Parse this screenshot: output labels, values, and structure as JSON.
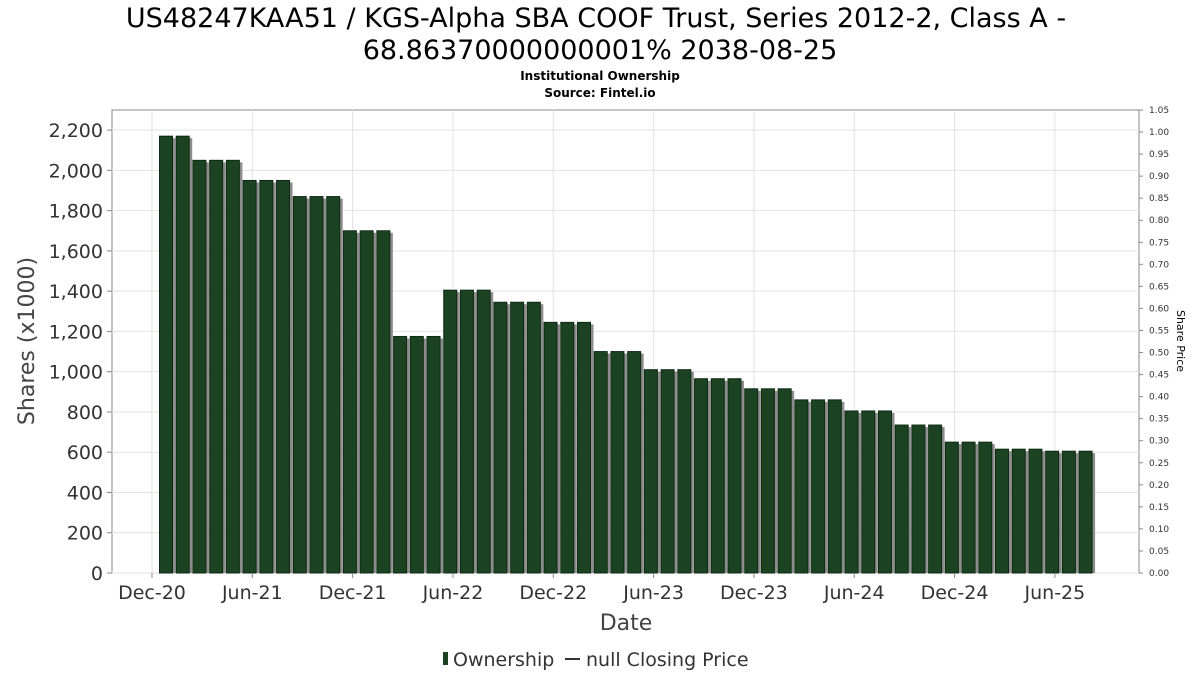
{
  "chart_data": {
    "type": "bar",
    "title_line1": "US48247KAA51 / KGS-Alpha SBA COOF Trust, Series 2012-2, Class A -",
    "title_line2": "68.86370000000001% 2038-08-25",
    "subtitle": "Institutional Ownership",
    "source": "Source: Fintel.io",
    "xlabel": "Date",
    "ylabel": "Shares (x1000)",
    "y2label": "Share Price",
    "ylim": [
      0,
      2300
    ],
    "y2lim": [
      0,
      1.05
    ],
    "yticks": [
      "0",
      "200",
      "400",
      "600",
      "800",
      "1,000",
      "1,200",
      "1,400",
      "1,600",
      "1,800",
      "2,000",
      "2,200"
    ],
    "y2ticks": [
      "0.00",
      "0.05",
      "0.10",
      "0.15",
      "0.20",
      "0.25",
      "0.30",
      "0.35",
      "0.40",
      "0.45",
      "0.50",
      "0.55",
      "0.60",
      "0.65",
      "0.70",
      "0.75",
      "0.80",
      "0.85",
      "0.90",
      "0.95",
      "1.00",
      "1.05"
    ],
    "xticks": [
      "Dec-20",
      "Jun-21",
      "Dec-21",
      "Jun-22",
      "Dec-22",
      "Jun-23",
      "Dec-23",
      "Jun-24",
      "Dec-24",
      "Jun-25"
    ],
    "series": [
      {
        "name": "Ownership",
        "color": "#1b4322",
        "values": [
          2170,
          2170,
          2050,
          2050,
          2050,
          1950,
          1950,
          1950,
          1870,
          1870,
          1870,
          1700,
          1700,
          1700,
          1175,
          1175,
          1175,
          1405,
          1405,
          1405,
          1345,
          1345,
          1345,
          1245,
          1245,
          1245,
          1100,
          1100,
          1100,
          1010,
          1010,
          1010,
          965,
          965,
          965,
          915,
          915,
          915,
          860,
          860,
          860,
          805,
          805,
          805,
          735,
          735,
          735,
          650,
          650,
          650,
          615,
          615,
          615,
          605,
          605,
          605
        ]
      }
    ],
    "legend": [
      {
        "label": "Ownership",
        "color": "#1b4322",
        "marker": "bar"
      },
      {
        "label": "null Closing Price",
        "color": "#333333",
        "marker": "line"
      }
    ],
    "legend_position": "bottom-center",
    "grid": true
  }
}
